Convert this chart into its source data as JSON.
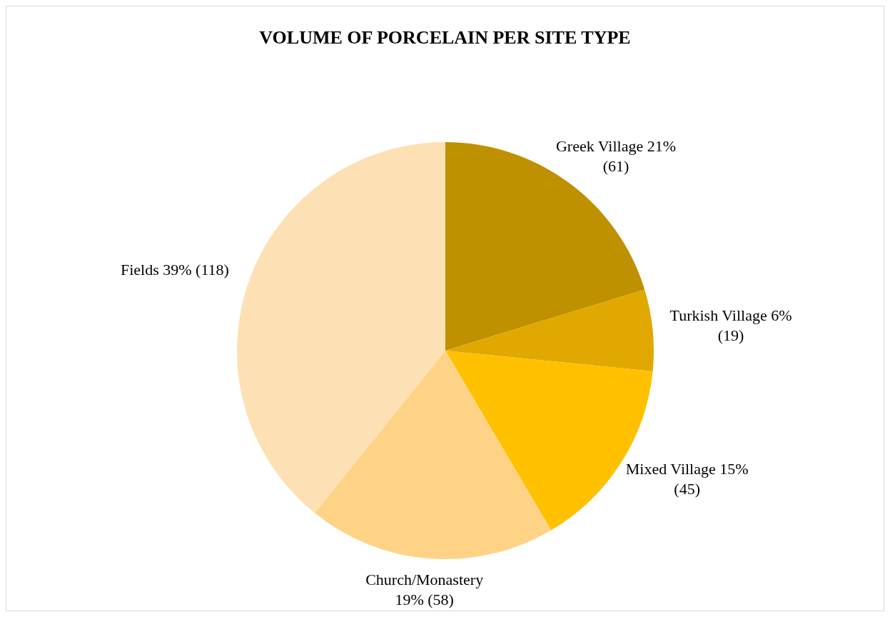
{
  "chart_data": {
    "type": "pie",
    "title": "VOLUME OF PORCELAIN PER SITE TYPE",
    "categories": [
      "Greek Village",
      "Turkish Village",
      "Mixed Village",
      "Church/Monastery",
      "Fields"
    ],
    "values": [
      61,
      19,
      45,
      58,
      118
    ],
    "colors": [
      "#bf9000",
      "#e0a800",
      "#ffc000",
      "#ffd386",
      "#fee0b5"
    ],
    "value_labels": [
      "21% (61)",
      "6% (19)",
      "15% (45)",
      "19% (58)",
      "39% (118)"
    ],
    "legend": false
  }
}
